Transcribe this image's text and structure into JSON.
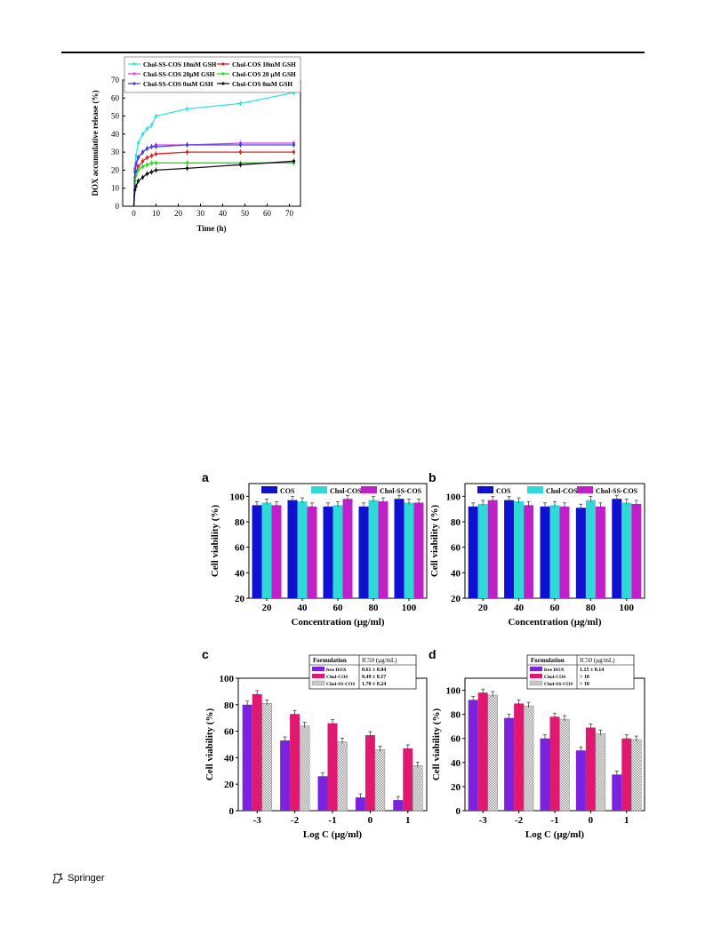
{
  "footer": {
    "publisher": "Springer",
    "logo_icon": "springer-horse-icon"
  },
  "chart_data": [
    {
      "id": "release",
      "type": "line",
      "title": "",
      "xlabel": "Time (h)",
      "ylabel": "DOX accumulative release (%)",
      "xlim": [
        -5,
        75
      ],
      "ylim": [
        0,
        70
      ],
      "xticks": [
        0,
        10,
        20,
        30,
        40,
        50,
        60,
        70
      ],
      "yticks": [
        0,
        10,
        20,
        30,
        40,
        50,
        60,
        70
      ],
      "legend_position": "top",
      "series": [
        {
          "name": "Chol-SS-COS 10mM GSH",
          "color": "#2ee6e6",
          "marker": "star",
          "x": [
            0,
            0.5,
            1,
            2,
            4,
            6,
            8,
            10,
            24,
            48,
            72
          ],
          "y": [
            0,
            20,
            28,
            35,
            40,
            43,
            45,
            50,
            54,
            57,
            63
          ]
        },
        {
          "name": "Chol-COS 10mM GSH",
          "color": "#e02020",
          "marker": "diamond",
          "x": [
            0,
            0.5,
            1,
            2,
            4,
            6,
            8,
            10,
            24,
            48,
            72
          ],
          "y": [
            0,
            16,
            19,
            22,
            25,
            27,
            28,
            29,
            30,
            30,
            30
          ]
        },
        {
          "name": "Chol-SS-COS 20µM GSH",
          "color": "#e040e0",
          "marker": "triangle-left",
          "x": [
            0,
            0.5,
            1,
            2,
            4,
            6,
            8,
            10,
            24,
            48,
            72
          ],
          "y": [
            0,
            21,
            24,
            27,
            30,
            32,
            33,
            34,
            34,
            35,
            35
          ]
        },
        {
          "name": "Chol-COS 20 µM GSH",
          "color": "#22dd22",
          "marker": "triangle-right",
          "x": [
            0,
            0.5,
            1,
            2,
            4,
            6,
            8,
            10,
            24,
            48,
            72
          ],
          "y": [
            0,
            14,
            17,
            20,
            22,
            23,
            24,
            24,
            24,
            24,
            24
          ]
        },
        {
          "name": "Chol-SS-COS 0mM GSH",
          "color": "#4040e0",
          "marker": "triangle-down",
          "x": [
            0,
            0.5,
            1,
            2,
            4,
            6,
            8,
            10,
            24,
            48,
            72
          ],
          "y": [
            0,
            19,
            23,
            27,
            30,
            32,
            33,
            33,
            34,
            34,
            34
          ]
        },
        {
          "name": "Chol-COS 0mM GSH",
          "color": "#111111",
          "marker": "square",
          "x": [
            0,
            0.5,
            1,
            2,
            4,
            6,
            8,
            10,
            24,
            48,
            72
          ],
          "y": [
            0,
            9,
            11,
            14,
            16,
            18,
            19,
            20,
            21,
            23,
            25
          ]
        }
      ]
    },
    {
      "id": "a",
      "panel": "a",
      "type": "bar",
      "xlabel": "Concentration (µg/ml)",
      "ylabel": "Cell viability (%)",
      "ylim": [
        20,
        110
      ],
      "yticks": [
        20,
        40,
        60,
        80,
        100
      ],
      "categories": [
        "20",
        "40",
        "60",
        "80",
        "100"
      ],
      "legend_position": "top",
      "series": [
        {
          "name": "COS",
          "color": "#1010d0",
          "pattern": "solid",
          "values": [
            93,
            97,
            92,
            92,
            98
          ]
        },
        {
          "name": "Chol-COS",
          "color": "#30d8d8",
          "pattern": "solid",
          "values": [
            95,
            96,
            93,
            97,
            95
          ]
        },
        {
          "name": "Chol-SS-COS",
          "color": "#c020c8",
          "pattern": "solid",
          "values": [
            93,
            92,
            98,
            96,
            95
          ]
        }
      ]
    },
    {
      "id": "b",
      "panel": "b",
      "type": "bar",
      "xlabel": "Concentration (µg/ml)",
      "ylabel": "Cell viability (%)",
      "ylim": [
        20,
        110
      ],
      "yticks": [
        20,
        40,
        60,
        80,
        100
      ],
      "categories": [
        "20",
        "40",
        "60",
        "80",
        "100"
      ],
      "legend_position": "top",
      "series": [
        {
          "name": "COS",
          "color": "#1010d0",
          "pattern": "solid",
          "values": [
            92,
            97,
            92,
            91,
            98
          ]
        },
        {
          "name": "Chol-COS",
          "color": "#30d8d8",
          "pattern": "solid",
          "values": [
            94,
            96,
            93,
            97,
            95
          ]
        },
        {
          "name": "Chol-SS-COS",
          "color": "#c020c8",
          "pattern": "solid",
          "values": [
            97,
            93,
            92,
            92,
            94
          ]
        }
      ]
    },
    {
      "id": "c",
      "panel": "c",
      "type": "bar",
      "xlabel": "Log C  (µg/ml)",
      "ylabel": "Cell viability (%)",
      "ylim": [
        0,
        100
      ],
      "yticks": [
        0,
        20,
        40,
        60,
        80,
        100
      ],
      "categories": [
        "-3",
        "-2",
        "-1",
        "0",
        "1"
      ],
      "legend_position": "top-right",
      "table_header": [
        "Formulation",
        "IC50 (µg/mL)"
      ],
      "series": [
        {
          "name": "free DOX",
          "color": "#7a22e0",
          "pattern": "solid",
          "ic50": "0.61 ± 0.04",
          "values": [
            80,
            53,
            26,
            10,
            8
          ]
        },
        {
          "name": "Chol-COS",
          "color": "#e01870",
          "pattern": "solid",
          "ic50": "9.49 ± 0.17",
          "values": [
            88,
            73,
            66,
            57,
            47
          ]
        },
        {
          "name": "Chol-SS-COS",
          "color": "#d8d8d8",
          "pattern": "hatch",
          "ic50": "1.70 ± 0.24",
          "values": [
            81,
            64,
            52,
            46,
            34
          ]
        }
      ]
    },
    {
      "id": "d",
      "panel": "d",
      "type": "bar",
      "xlabel": "Log C  (µg/ml)",
      "ylabel": "Cell viability (%)",
      "ylim": [
        0,
        110
      ],
      "yticks": [
        0,
        20,
        40,
        60,
        80,
        100
      ],
      "categories": [
        "-3",
        "-2",
        "-1",
        "0",
        "1"
      ],
      "legend_position": "top-right",
      "table_header": [
        "Formulation",
        "IC50 (µg/mL)"
      ],
      "series": [
        {
          "name": "free DOX",
          "color": "#7a22e0",
          "pattern": "solid",
          "ic50": "1.15 ± 0.14",
          "values": [
            92,
            77,
            60,
            50,
            30
          ]
        },
        {
          "name": "Chol-COS",
          "color": "#e01870",
          "pattern": "solid",
          "ic50": "> 10",
          "values": [
            98,
            89,
            78,
            69,
            60
          ]
        },
        {
          "name": "Chol-SS-COS",
          "color": "#d8d8d8",
          "pattern": "hatch",
          "ic50": "> 10",
          "values": [
            96,
            87,
            76,
            64,
            59
          ]
        }
      ]
    }
  ]
}
